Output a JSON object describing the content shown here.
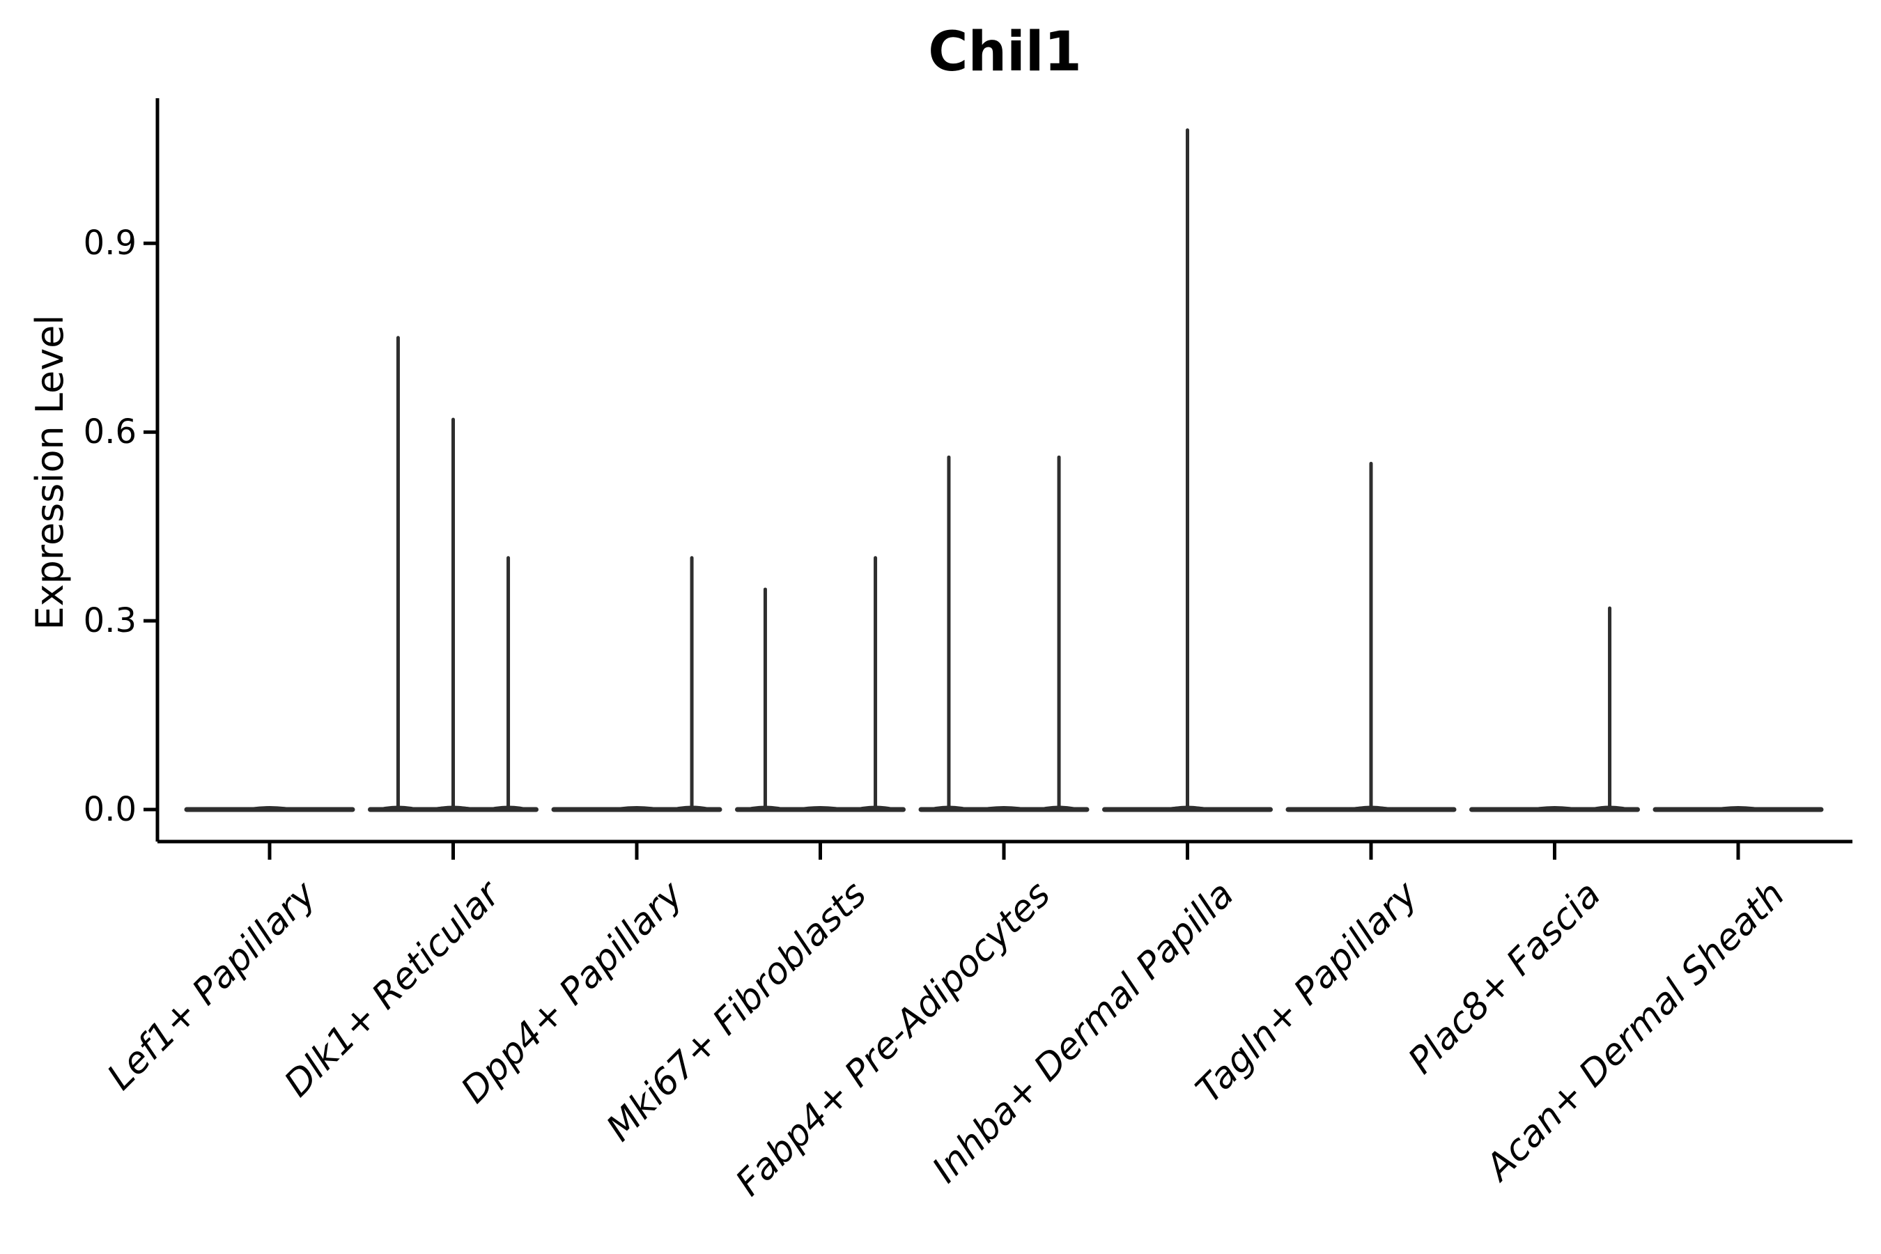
{
  "chart_data": {
    "type": "violin",
    "title": "Chil1",
    "ylabel": "Expression Level",
    "xlabel": "",
    "ytick_labels": [
      "0.0",
      "0.3",
      "0.6",
      "0.9"
    ],
    "yticks": [
      0.0,
      0.3,
      0.6,
      0.9
    ],
    "ylim": [
      -0.05,
      1.13
    ],
    "grid": false,
    "legend": "none",
    "categories": [
      "Lef1+ Papillary",
      "Dlk1+ Reticular",
      "Dpp4+ Papillary",
      "Mki67+ Fibroblasts",
      "Fabp4+ Pre-Adipocytes",
      "Inhba+ Dermal Papilla",
      "Tagln+ Papillary",
      "Plac8+ Fascia",
      "Acan+ Dermal Sheath"
    ],
    "violins": [
      {
        "category": "Lef1+ Papillary",
        "baseline_value": 0.0,
        "spikes": []
      },
      {
        "category": "Dlk1+ Reticular",
        "baseline_value": 0.0,
        "spikes": [
          {
            "x_offset": -0.3,
            "value": 0.75
          },
          {
            "x_offset": 0.0,
            "value": 0.62
          },
          {
            "x_offset": 0.3,
            "value": 0.4
          }
        ]
      },
      {
        "category": "Dpp4+ Papillary",
        "baseline_value": 0.0,
        "spikes": [
          {
            "x_offset": 0.3,
            "value": 0.4
          }
        ]
      },
      {
        "category": "Mki67+ Fibroblasts",
        "baseline_value": 0.0,
        "spikes": [
          {
            "x_offset": -0.3,
            "value": 0.35
          },
          {
            "x_offset": 0.3,
            "value": 0.4
          }
        ]
      },
      {
        "category": "Fabp4+ Pre-Adipocytes",
        "baseline_value": 0.0,
        "spikes": [
          {
            "x_offset": -0.3,
            "value": 0.56
          },
          {
            "x_offset": 0.3,
            "value": 0.56
          }
        ]
      },
      {
        "category": "Inhba+ Dermal Papilla",
        "baseline_value": 0.0,
        "spikes": [
          {
            "x_offset": 0.0,
            "value": 1.08
          }
        ]
      },
      {
        "category": "Tagln+ Papillary",
        "baseline_value": 0.0,
        "spikes": [
          {
            "x_offset": 0.0,
            "value": 0.55
          }
        ]
      },
      {
        "category": "Plac8+ Fascia",
        "baseline_value": 0.0,
        "spikes": [
          {
            "x_offset": 0.3,
            "value": 0.32
          }
        ]
      },
      {
        "category": "Acan+ Dermal Sheath",
        "baseline_value": 0.0,
        "spikes": []
      }
    ],
    "colors": {
      "violin_stroke": "#2e2e2e",
      "axis": "#000000",
      "text": "#000000",
      "background": "#ffffff"
    }
  }
}
